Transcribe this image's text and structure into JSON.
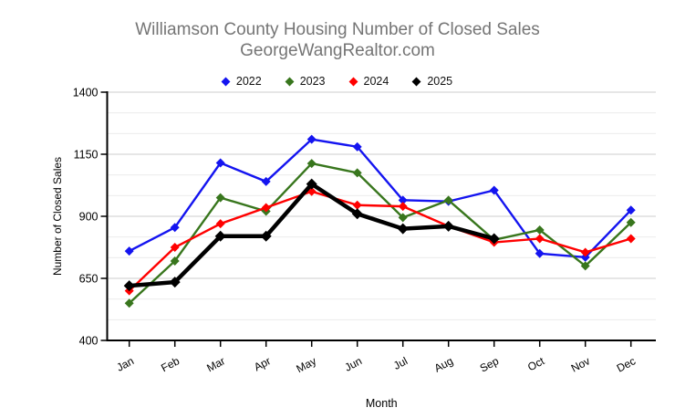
{
  "chart_data": {
    "type": "line",
    "title": "Williamson County Housing Number of Closed Sales",
    "subtitle": "GeorgeWangRealtor.com",
    "x": [
      "Jan",
      "Feb",
      "Mar",
      "Apr",
      "May",
      "Jun",
      "Jul",
      "Aug",
      "Sep",
      "Oct",
      "Nov",
      "Dec"
    ],
    "xlabel": "Month",
    "ylabel": "Number of Closed Sales",
    "ylim": [
      400,
      1400
    ],
    "y_ticks": [
      1400,
      1150,
      900,
      650,
      400
    ],
    "minor_gridlines_per_interval": 2,
    "grid": true,
    "legend_position": "top",
    "marker": "diamond",
    "series": [
      {
        "name": "2022",
        "color": "#1414f0",
        "line_width": 2.4,
        "values": [
          760,
          855,
          1115,
          1040,
          1210,
          1180,
          965,
          960,
          1005,
          750,
          735,
          925
        ]
      },
      {
        "name": "2023",
        "color": "#38761d",
        "line_width": 2.4,
        "values": [
          550,
          720,
          975,
          920,
          1113,
          1075,
          895,
          965,
          805,
          845,
          700,
          875
        ]
      },
      {
        "name": "2024",
        "color": "#ff0000",
        "line_width": 2.4,
        "values": [
          600,
          775,
          870,
          935,
          1000,
          945,
          940,
          860,
          795,
          810,
          755,
          810
        ]
      },
      {
        "name": "2025",
        "color": "#000000",
        "line_width": 4.5,
        "values": [
          620,
          635,
          820,
          820,
          1030,
          910,
          850,
          860,
          810,
          null,
          null,
          null
        ]
      }
    ]
  },
  "colors": {
    "title_text": "#757575",
    "axis": "#000000",
    "major_grid": "#cccccc",
    "minor_grid": "#ececec",
    "tick_text": "#000000",
    "background": "#ffffff"
  }
}
